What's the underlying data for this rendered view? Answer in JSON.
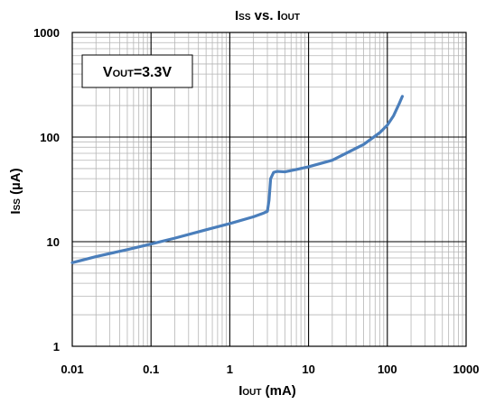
{
  "chart_data": {
    "type": "line",
    "title": {
      "main1": "I",
      "sub1": "SS",
      "mid": " vs. I",
      "sub2": "OUT"
    },
    "xlabel": {
      "main1": "I",
      "sub1": "OUT",
      "rest": " (mA)"
    },
    "ylabel": {
      "main1": "I",
      "sub1": "SS",
      "rest": " (µA)"
    },
    "annotation": {
      "main1": "V",
      "sub1": "OUT",
      "rest": "=3.3V"
    },
    "xscale": "log",
    "yscale": "log",
    "xlim": [
      0.01,
      1000
    ],
    "ylim": [
      1,
      1000
    ],
    "xticks": [
      "0.01",
      "0.1",
      "1",
      "10",
      "100",
      "1000"
    ],
    "yticks": [
      "1",
      "10",
      "100",
      "1000"
    ],
    "grid": true,
    "series": [
      {
        "color": "#4a7ebb",
        "x": [
          0.01,
          0.02,
          0.05,
          0.1,
          0.2,
          0.5,
          1,
          2,
          2.7,
          3.0,
          3.15,
          3.3,
          3.6,
          4.0,
          5,
          7,
          10,
          20,
          50,
          80,
          100,
          120,
          140,
          155
        ],
        "y": [
          6.3,
          7.2,
          8.4,
          9.5,
          10.8,
          13.0,
          14.9,
          17.3,
          18.8,
          19.5,
          25,
          40,
          46,
          47,
          46.5,
          49,
          52,
          60,
          85,
          110,
          130,
          160,
          205,
          245
        ]
      }
    ]
  }
}
